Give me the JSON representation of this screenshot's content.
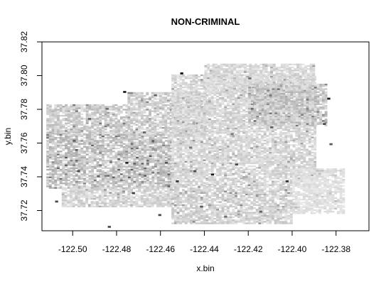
{
  "chart_data": {
    "type": "heatmap",
    "title": "NON-CRIMINAL",
    "xlabel": "x.bin",
    "ylabel": "y.bin",
    "xlim": [
      -122.514,
      -122.365
    ],
    "ylim": [
      37.708,
      37.82
    ],
    "x_ticks": [
      -122.5,
      -122.48,
      -122.46,
      -122.44,
      -122.42,
      -122.4,
      -122.38
    ],
    "x_tick_labels": [
      "-122.50",
      "-122.48",
      "-122.46",
      "-122.44",
      "-122.42",
      "-122.40",
      "-122.38"
    ],
    "y_ticks": [
      37.72,
      37.74,
      37.76,
      37.78,
      37.8,
      37.82
    ],
    "y_tick_labels": [
      "37.72",
      "37.74",
      "37.76",
      "37.78",
      "37.80",
      "37.82"
    ],
    "bin_width": 0.0012,
    "color_scale": {
      "low": "#f2f2f2",
      "high": "#000000"
    },
    "density_regions": [
      {
        "x": [
          -122.512,
          -122.475
        ],
        "y": [
          37.765,
          37.783
        ],
        "level": 0.18
      },
      {
        "x": [
          -122.512,
          -122.455
        ],
        "y": [
          37.733,
          37.765
        ],
        "level": 0.22
      },
      {
        "x": [
          -122.505,
          -122.455
        ],
        "y": [
          37.722,
          37.733
        ],
        "level": 0.14
      },
      {
        "x": [
          -122.475,
          -122.44
        ],
        "y": [
          37.765,
          37.79
        ],
        "level": 0.16
      },
      {
        "x": [
          -122.455,
          -122.39
        ],
        "y": [
          37.735,
          37.8
        ],
        "level": 0.13
      },
      {
        "x": [
          -122.44,
          -122.39
        ],
        "y": [
          37.79,
          37.807
        ],
        "level": 0.12
      },
      {
        "x": [
          -122.42,
          -122.385
        ],
        "y": [
          37.77,
          37.795
        ],
        "level": 0.2
      },
      {
        "x": [
          -122.455,
          -122.4
        ],
        "y": [
          37.712,
          37.735
        ],
        "level": 0.15
      },
      {
        "x": [
          -122.4,
          -122.377
        ],
        "y": [
          37.718,
          37.745
        ],
        "level": 0.08
      }
    ],
    "high_bins": [
      {
        "x": -122.477,
        "y": 37.79,
        "level": 0.9
      },
      {
        "x": -122.451,
        "y": 37.801,
        "level": 0.95
      },
      {
        "x": -122.463,
        "y": 37.788,
        "level": 0.6
      },
      {
        "x": -122.476,
        "y": 37.748,
        "level": 0.85
      },
      {
        "x": -122.498,
        "y": 37.743,
        "level": 0.7
      },
      {
        "x": -122.5,
        "y": 37.761,
        "level": 0.6
      },
      {
        "x": -122.453,
        "y": 37.737,
        "level": 0.8
      },
      {
        "x": -122.445,
        "y": 37.743,
        "level": 0.7
      },
      {
        "x": -122.437,
        "y": 37.741,
        "level": 0.9
      },
      {
        "x": -122.458,
        "y": 37.748,
        "level": 0.65
      },
      {
        "x": -122.473,
        "y": 37.73,
        "level": 0.75
      },
      {
        "x": -122.461,
        "y": 37.717,
        "level": 0.7
      },
      {
        "x": -122.442,
        "y": 37.722,
        "level": 0.65
      },
      {
        "x": -122.426,
        "y": 37.747,
        "level": 0.7
      },
      {
        "x": -122.403,
        "y": 37.737,
        "level": 0.8
      },
      {
        "x": -122.384,
        "y": 37.786,
        "level": 0.9
      },
      {
        "x": -122.386,
        "y": 37.771,
        "level": 0.7
      },
      {
        "x": -122.383,
        "y": 37.759,
        "level": 0.65
      },
      {
        "x": -122.41,
        "y": 37.769,
        "level": 0.6
      },
      {
        "x": -122.42,
        "y": 37.798,
        "level": 0.55
      },
      {
        "x": -122.493,
        "y": 37.774,
        "level": 0.6
      },
      {
        "x": -122.508,
        "y": 37.725,
        "level": 0.7
      },
      {
        "x": -122.484,
        "y": 37.71,
        "level": 0.7
      },
      {
        "x": -122.428,
        "y": 37.765,
        "level": 0.5
      },
      {
        "x": -122.485,
        "y": 37.78,
        "level": 0.55
      },
      {
        "x": -122.468,
        "y": 37.766,
        "level": 0.6
      },
      {
        "x": -122.431,
        "y": 37.716,
        "level": 0.55
      },
      {
        "x": -122.415,
        "y": 37.719,
        "level": 0.6
      },
      {
        "x": -122.447,
        "y": 37.757,
        "level": 0.5
      },
      {
        "x": -122.489,
        "y": 37.74,
        "level": 0.6
      }
    ],
    "grid": false,
    "legend": "none"
  }
}
